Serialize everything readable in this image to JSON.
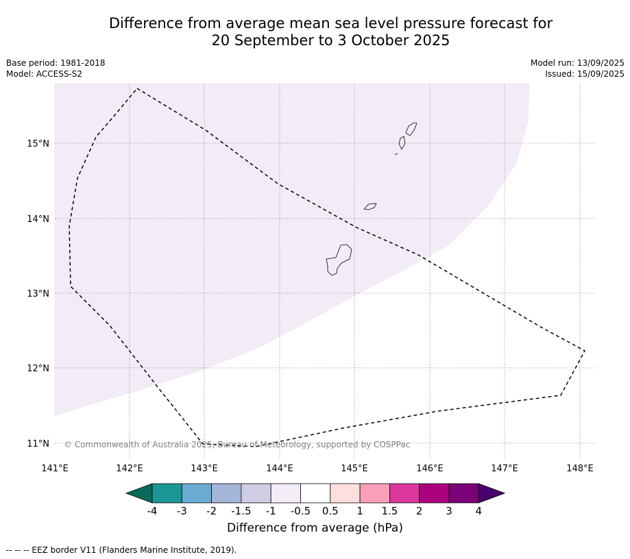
{
  "title_line1": "Difference from average mean sea level pressure forecast for",
  "title_line2": "20 September to 3 October 2025",
  "base_period": "Base period: 1981-2018",
  "model": "Model: ACCESS-S2",
  "model_run": "Model run: 13/09/2025",
  "issued": "Issued: 15/09/2025",
  "copyright": "© Commonwealth of Australia 2025, Bureau of Meteorology, supported by COSPPac",
  "lat_labels": [
    "15°N",
    "14°N",
    "13°N",
    "12°N",
    "11°N"
  ],
  "lon_labels": [
    "141°E",
    "142°E",
    "143°E",
    "144°E",
    "145°E",
    "146°E",
    "147°E",
    "148°E"
  ],
  "colorbar": {
    "ticks": [
      "-4",
      "-3",
      "-2",
      "-1.5",
      "-1",
      "-0.5",
      "0.5",
      "1",
      "1.5",
      "2",
      "3",
      "4"
    ],
    "colors": [
      "#1a9696",
      "#6aabd3",
      "#a4b7da",
      "#cfcde4",
      "#f3ecf6",
      "#ffffff",
      "#fde0dd",
      "#f99fb9",
      "#db379c",
      "#ac017d",
      "#7a0177",
      "#4a006a"
    ],
    "under_color": "#0a6a5a",
    "label": "Difference from average (hPa)"
  },
  "footnote": "--  --  -- EEZ border V11 (Flanders Marine Institute, 2019).",
  "map": {
    "lon_range": [
      141,
      148.2
    ],
    "lat_range": [
      10.8,
      15.8
    ],
    "anomaly_fill_color": "#f3ecf6",
    "anomaly_class": "-1 to -0.5"
  }
}
